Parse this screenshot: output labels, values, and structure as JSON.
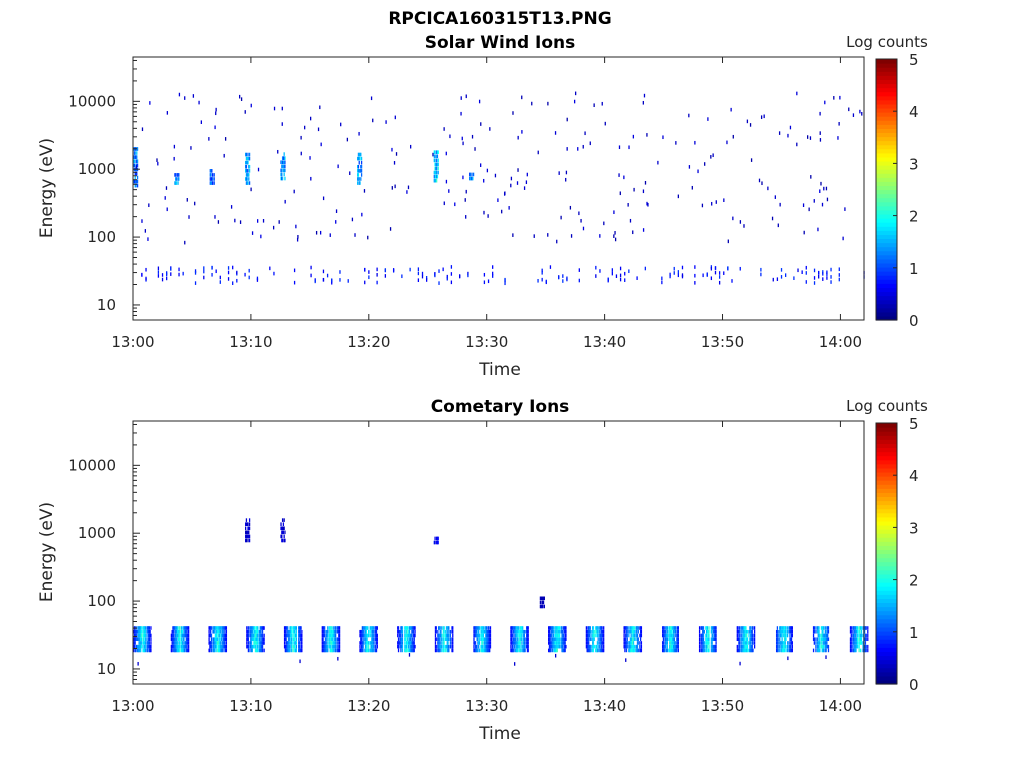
{
  "figure_title": "RPCICA160315T13.PNG",
  "colors": {
    "colormap": "jet",
    "axis": "#262626",
    "background": "#ffffff"
  },
  "chart_data": [
    {
      "type": "heatmap",
      "title": "Solar Wind Ions",
      "xlabel": "Time",
      "ylabel": "Energy (eV)",
      "y_scale": "log",
      "xlim": [
        "13:00",
        "14:02"
      ],
      "ylim": [
        6,
        45000
      ],
      "x_ticks": [
        "13:00",
        "13:10",
        "13:20",
        "13:30",
        "13:40",
        "13:50",
        "14:00"
      ],
      "y_ticks": [
        10,
        100,
        1000,
        10000
      ],
      "y_tick_labels": [
        "10",
        "100",
        "1000",
        "10000"
      ],
      "colorbar": {
        "label": "Log counts",
        "range": [
          0,
          5
        ],
        "ticks": [
          "0",
          "1",
          "2",
          "3",
          "4",
          "5"
        ]
      },
      "grid": false,
      "features": [
        {
          "time": "13:00",
          "energy": [
            550,
            2000
          ],
          "log_counts": 1.6
        },
        {
          "time": "13:03.5",
          "energy": [
            600,
            900
          ],
          "log_counts": 1.7
        },
        {
          "time": "13:06.5",
          "energy": [
            600,
            1000
          ],
          "log_counts": 1.5
        },
        {
          "time": "13:09.5",
          "energy": [
            600,
            1600
          ],
          "log_counts": 1.8
        },
        {
          "time": "13:12.5",
          "energy": [
            700,
            1700
          ],
          "log_counts": 1.8
        },
        {
          "time": "13:19",
          "energy": [
            600,
            1800
          ],
          "log_counts": 1.8
        },
        {
          "time": "13:25.5",
          "energy": [
            650,
            1800
          ],
          "log_counts": 2.2
        },
        {
          "time": "13:28.5",
          "energy": [
            700,
            900
          ],
          "log_counts": 1.6
        },
        {
          "time": "13:00-14:02",
          "energy": [
            20,
            35
          ],
          "log_counts": 0.5
        }
      ]
    },
    {
      "type": "heatmap",
      "title": "Cometary Ions",
      "xlabel": "Time",
      "ylabel": "Energy (eV)",
      "y_scale": "log",
      "xlim": [
        "13:00",
        "14:02"
      ],
      "ylim": [
        6,
        45000
      ],
      "x_ticks": [
        "13:00",
        "13:10",
        "13:20",
        "13:30",
        "13:40",
        "13:50",
        "14:00"
      ],
      "y_ticks": [
        10,
        100,
        1000,
        10000
      ],
      "y_tick_labels": [
        "10",
        "100",
        "1000",
        "10000"
      ],
      "colorbar": {
        "label": "Log counts",
        "range": [
          0,
          5
        ],
        "ticks": [
          "0",
          "1",
          "2",
          "3",
          "4",
          "5"
        ]
      },
      "grid": false,
      "features": [
        {
          "time_start": "13:00",
          "time_end": "14:02",
          "period_min": 3.2,
          "energy": [
            18,
            40
          ],
          "peak_log_counts": 2.3
        },
        {
          "time": "13:09.5",
          "energy": [
            750,
            1700
          ],
          "log_counts": 0.5
        },
        {
          "time": "13:12.5",
          "energy": [
            750,
            1700
          ],
          "log_counts": 0.5
        },
        {
          "time": "13:25.5",
          "energy": [
            700,
            850
          ],
          "log_counts": 0.8
        },
        {
          "time": "13:34.5",
          "energy": [
            80,
            120
          ],
          "log_counts": 0.4
        }
      ]
    }
  ]
}
